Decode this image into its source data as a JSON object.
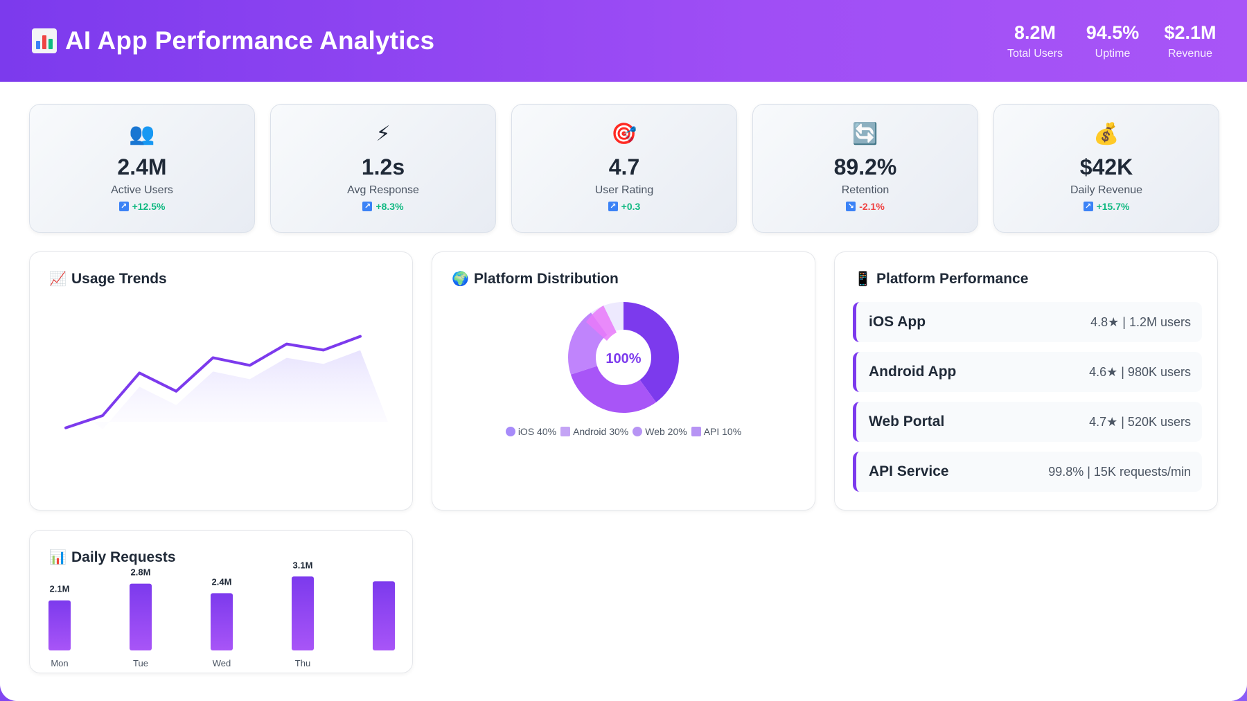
{
  "header": {
    "title": "AI App Performance Analytics",
    "stats": [
      {
        "value": "8.2M",
        "label": "Total Users"
      },
      {
        "value": "94.5%",
        "label": "Uptime"
      },
      {
        "value": "$2.1M",
        "label": "Revenue"
      }
    ]
  },
  "kpis": [
    {
      "icon": "users-icon",
      "glyph": "👥",
      "value": "2.4M",
      "label": "Active Users",
      "change": "+12.5%",
      "trend": "up"
    },
    {
      "icon": "lightning-icon",
      "glyph": "⚡",
      "value": "1.2s",
      "label": "Avg Response",
      "change": "+8.3%",
      "trend": "up"
    },
    {
      "icon": "target-icon",
      "glyph": "🎯",
      "value": "4.7",
      "label": "User Rating",
      "change": "+0.3",
      "trend": "up"
    },
    {
      "icon": "refresh-icon",
      "glyph": "🔄",
      "value": "89.2%",
      "label": "Retention",
      "change": "-2.1%",
      "trend": "down"
    },
    {
      "icon": "money-bag-icon",
      "glyph": "💰",
      "value": "$42K",
      "label": "Daily Revenue",
      "change": "+15.7%",
      "trend": "up"
    }
  ],
  "usage_trends": {
    "title": "Usage Trends",
    "icon": "chart-up-icon",
    "chart_data": {
      "type": "line",
      "values": [
        12,
        20,
        48,
        36,
        58,
        53,
        67,
        63,
        72
      ],
      "ylim": [
        0,
        100
      ],
      "grid": false,
      "colors": {
        "line": "#7c3aed",
        "area": "#ede9fe"
      }
    }
  },
  "platform_distribution": {
    "title": "Platform Distribution",
    "icon": "globe-icon",
    "center_label": "100%",
    "chart_data": {
      "type": "pie",
      "categories": [
        "iOS",
        "Android",
        "Web",
        "API"
      ],
      "values": [
        40,
        30,
        20,
        10
      ],
      "colors": [
        "#7c3aed",
        "#a855f7",
        "#c084fc",
        "#ede9fe"
      ]
    },
    "legend": [
      "iOS 40%",
      "Android 30%",
      "Web 20%",
      "API 10%"
    ],
    "legend_colors": [
      "#9f7aea",
      "#b794f4",
      "#b794f4",
      "#a78bfa"
    ]
  },
  "platform_performance": {
    "title": "Platform Performance",
    "icon": "mobile-phone-icon",
    "items": [
      {
        "name": "iOS App",
        "meta": "4.8★ | 1.2M users"
      },
      {
        "name": "Android App",
        "meta": "4.6★ | 980K users"
      },
      {
        "name": "Web Portal",
        "meta": "4.7★ | 520K users"
      },
      {
        "name": "API Service",
        "meta": "99.8% | 15K requests/min"
      }
    ]
  },
  "daily_requests": {
    "title": "Daily Requests",
    "icon": "bar-chart-icon",
    "chart_data": {
      "type": "bar",
      "categories": [
        "Mon",
        "Tue",
        "Wed",
        "Thu",
        ""
      ],
      "values": [
        2.1,
        2.8,
        2.4,
        3.1,
        2.9
      ],
      "data_labels": [
        "2.1M",
        "2.8M",
        "2.4M",
        "3.1M",
        ""
      ],
      "ylim": [
        0,
        3.6
      ],
      "colors": {
        "bar_top": "#7c3aed",
        "bar_bottom": "#a855f7"
      }
    }
  }
}
